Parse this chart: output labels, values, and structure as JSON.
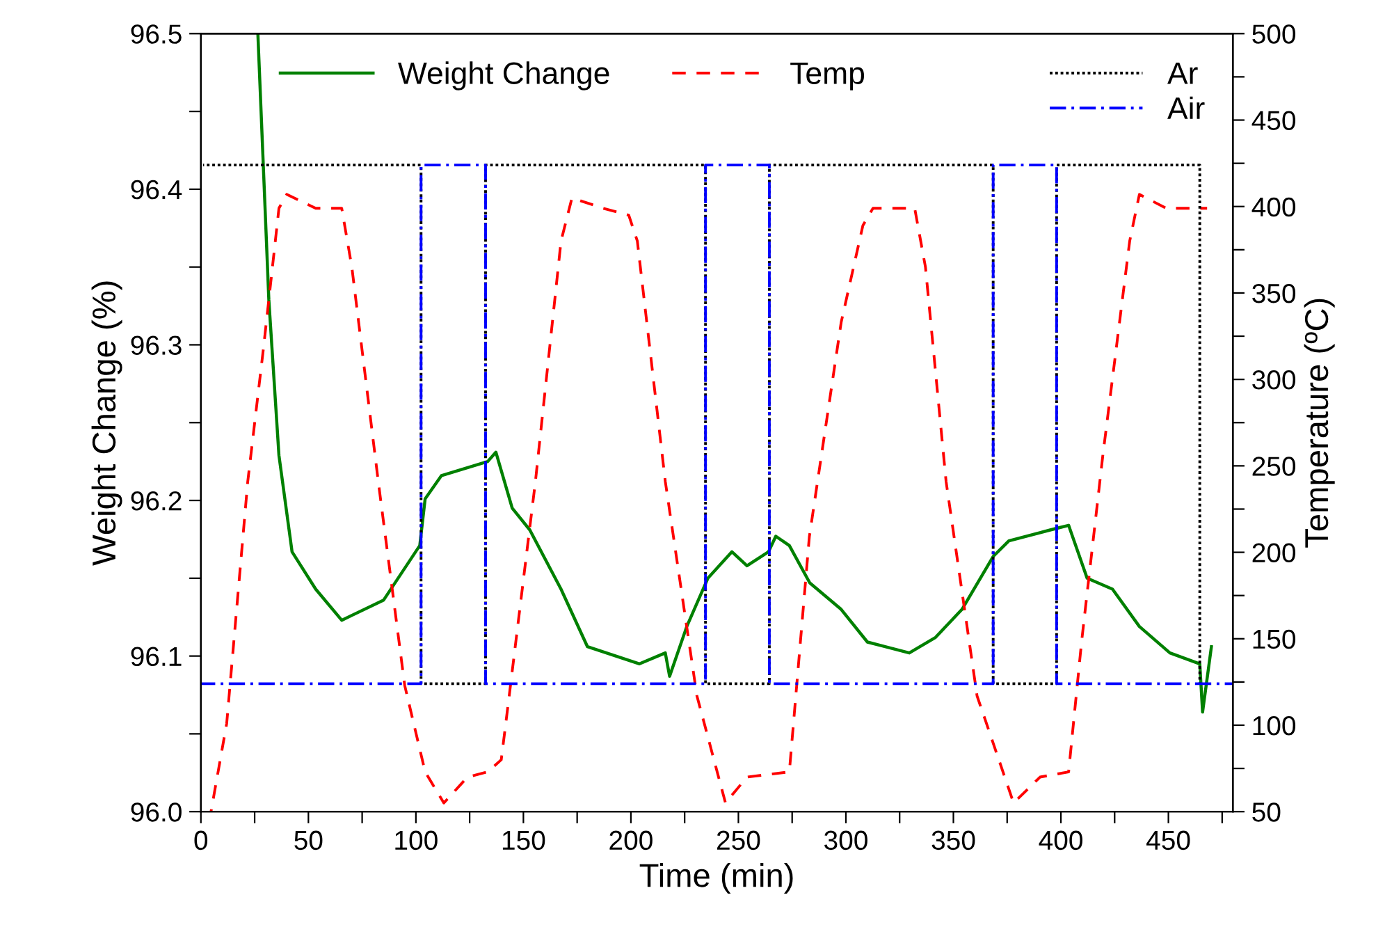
{
  "chart_data": {
    "type": "line",
    "xlabel": "Time (min)",
    "ylabel": "Weight Change (%)",
    "y2label": "Temperature (ºC)",
    "xlim": [
      0,
      480
    ],
    "xticks": [
      0,
      {
        "value": 25,
        "label": null
      },
      50,
      {
        "value": 75,
        "label": null
      },
      100,
      {
        "value": 125,
        "label": null
      },
      150,
      {
        "value": 175,
        "label": null
      },
      200,
      {
        "value": 225,
        "label": null
      },
      250,
      {
        "value": 275,
        "label": null
      },
      300,
      {
        "value": 325,
        "label": null
      },
      350,
      {
        "value": 375,
        "label": null
      },
      400,
      {
        "value": 425,
        "label": null
      },
      450,
      {
        "value": 475,
        "label": null
      }
    ],
    "ylim": [
      96.0,
      96.5
    ],
    "yticks": [
      {
        "value": 96.0,
        "label": "96.0"
      },
      {
        "value": 96.05,
        "label": null
      },
      {
        "value": 96.1,
        "label": "96.1"
      },
      {
        "value": 96.15,
        "label": null
      },
      {
        "value": 96.2,
        "label": "96.2"
      },
      {
        "value": 96.25,
        "label": null
      },
      {
        "value": 96.3,
        "label": "96.3"
      },
      {
        "value": 96.35,
        "label": null
      },
      {
        "value": 96.4,
        "label": "96.4"
      },
      {
        "value": 96.45,
        "label": null
      },
      {
        "value": 96.5,
        "label": "96.5"
      }
    ],
    "y2lim": [
      50,
      500
    ],
    "y2ticks": [
      50,
      {
        "value": 75,
        "label": null
      },
      100,
      {
        "value": 125,
        "label": null
      },
      150,
      {
        "value": 175,
        "label": null
      },
      200,
      {
        "value": 225,
        "label": null
      },
      250,
      {
        "value": 275,
        "label": null
      },
      300,
      {
        "value": 325,
        "label": null
      },
      350,
      {
        "value": 375,
        "label": null
      },
      400,
      {
        "value": 425,
        "label": null
      },
      450,
      {
        "value": 475,
        "label": null
      },
      500
    ],
    "grid": false,
    "legend": "top",
    "marker": "none",
    "series": [
      {
        "name": "Weight Change",
        "color": "#008000",
        "line_style": "solid",
        "x": [
          26.5,
          31.6,
          36.3,
          42.4,
          53.4,
          65.5,
          85,
          101.8,
          104.3,
          111.9,
          133.4,
          137.2,
          144.8,
          153,
          167.5,
          179.8,
          204,
          216,
          218,
          226,
          235.8,
          247,
          254,
          264,
          267.4,
          273.7,
          283.2,
          297.8,
          310,
          329.5,
          341.7,
          354,
          368.5,
          375.8,
          395,
          403.6,
          412.2,
          424,
          436.5,
          450.7,
          464.6,
          465.9,
          470
        ],
        "values": [
          96.5,
          96.329,
          96.229,
          96.167,
          96.143,
          96.123,
          96.136,
          96.171,
          96.201,
          96.216,
          96.225,
          96.231,
          96.195,
          96.181,
          96.143,
          96.106,
          96.095,
          96.102,
          96.087,
          96.119,
          96.15,
          96.167,
          96.158,
          96.167,
          96.177,
          96.171,
          96.147,
          96.13,
          96.109,
          96.102,
          96.112,
          96.13,
          96.164,
          96.174,
          96.181,
          96.184,
          96.15,
          96.143,
          96.119,
          96.102,
          96.095,
          96.064,
          96.106
        ]
      },
      {
        "name": "Temp",
        "color": "#ff0000",
        "line_style": "dashed",
        "axis": "y2",
        "x": [
          4.7,
          12,
          21.8,
          29.1,
          36.3,
          39.9,
          53.4,
          65.5,
          70.2,
          82.5,
          94.8,
          104.3,
          113,
          124,
          133.4,
          139.7,
          143.4,
          155.6,
          167.5,
          172.6,
          187,
          199,
          203,
          216,
          230.7,
          244,
          254,
          273.7,
          283,
          297.8,
          307.9,
          312.6,
          332,
          337,
          346.6,
          361,
          378,
          390.3,
          403.6,
          409.6,
          419.5,
          432,
          436.5,
          449,
          468
        ],
        "values": [
          50,
          101,
          241,
          318,
          399,
          407,
          399,
          399,
          365,
          241,
          123,
          73,
          55,
          70,
          73,
          80,
          117,
          241,
          380,
          405,
          399,
          395,
          380,
          241,
          117,
          55,
          70,
          73,
          209,
          333,
          389,
          399,
          399,
          365,
          241,
          117,
          55,
          70,
          73,
          148,
          256,
          380,
          407,
          399,
          399
        ]
      },
      {
        "name": "Ar",
        "color": "#000000",
        "line_style": "dotted",
        "axis": "y2",
        "x": [
          1,
          102.4,
          102.4,
          132.4,
          132.4,
          234.7,
          234.7,
          264.4,
          264.4,
          368.5,
          368.5,
          398,
          398,
          464.6,
          464.6
        ],
        "values": [
          424,
          424,
          124,
          124,
          424,
          424,
          124,
          124,
          424,
          424,
          124,
          124,
          424,
          424,
          124
        ]
      },
      {
        "name": "Air",
        "color": "#0000ff",
        "line_style": "dashdot",
        "axis": "y2",
        "x": [
          0,
          102.4,
          102.4,
          132.4,
          132.4,
          234.7,
          234.7,
          264.4,
          264.4,
          368.5,
          368.5,
          398,
          398,
          480
        ],
        "values": [
          124,
          124,
          424,
          424,
          124,
          124,
          424,
          424,
          124,
          124,
          424,
          424,
          124,
          124
        ]
      }
    ]
  }
}
